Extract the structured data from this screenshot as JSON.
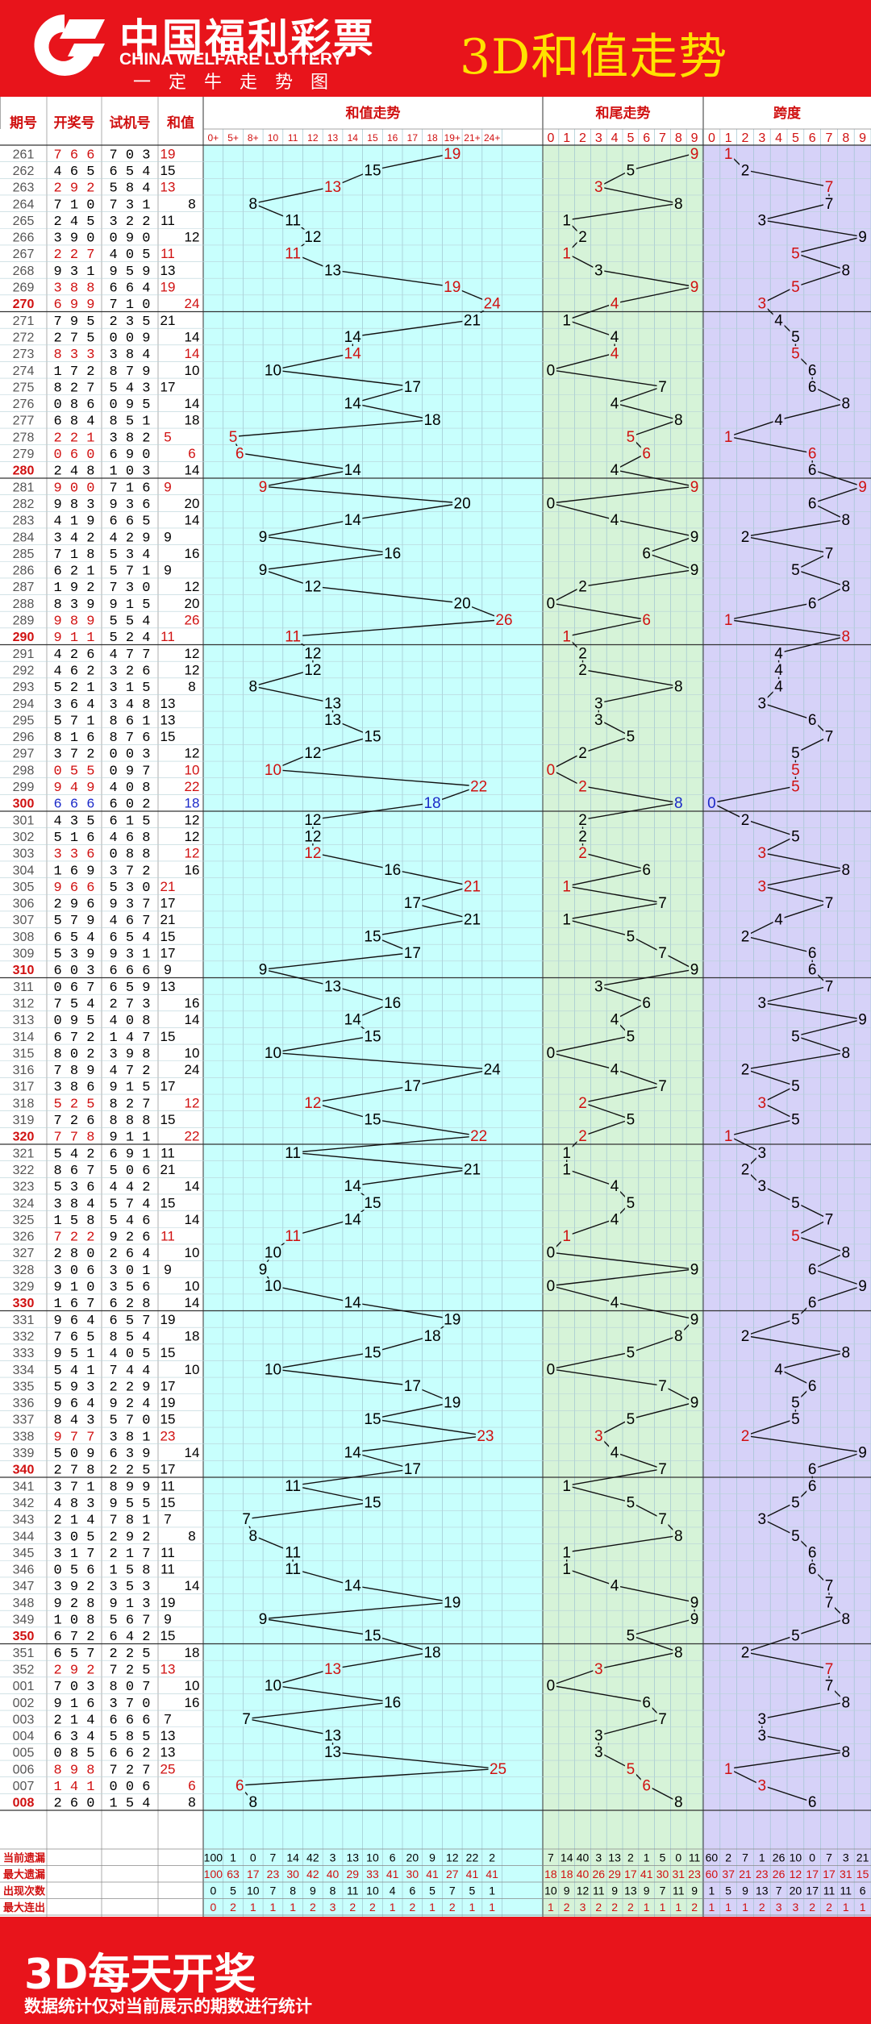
{
  "header": {
    "cn_name": "中国福利彩票",
    "en_name": "CHINA WELFARE LOTTERY",
    "slogan": "一定牛走势图",
    "title": "3D和值走势"
  },
  "footer": {
    "big": "3D每天开奖",
    "small": "数据统计仅对当前展示的期数进行统计"
  },
  "colors": {
    "red": "#e8141b",
    "hotRed": "#ee1111",
    "blue": "#1a28c8",
    "sumBg": "#c8fffd",
    "tailBg": "#d6f3d8",
    "spanBg": "#d6d2f8",
    "leftBg": "#ffffff",
    "yellow": "#ffe200"
  },
  "chart_data": {
    "type": "line",
    "title": "3D和值走势",
    "headers": {
      "issue": "期号",
      "draw": "开奖号",
      "trial": "试机号",
      "sum": "和值",
      "sumTrend": "和值走势",
      "tailTrend": "和尾走势",
      "spanTrend": "跨度"
    },
    "sumCols": [
      "0+",
      "5+",
      "8+",
      "10",
      "11",
      "12",
      "13",
      "14",
      "15",
      "16",
      "17",
      "18",
      "19+",
      "21+",
      "24+"
    ],
    "digitCols": [
      "0",
      "1",
      "2",
      "3",
      "4",
      "5",
      "6",
      "7",
      "8",
      "9"
    ],
    "rows": [
      {
        "issue": "261",
        "draw": "766",
        "trial": "703",
        "sum": 19,
        "tail": 9,
        "span": 1
      },
      {
        "issue": "262",
        "draw": "465",
        "trial": "654",
        "sum": 15,
        "tail": 5,
        "span": 2
      },
      {
        "issue": "263",
        "draw": "292",
        "trial": "584",
        "sum": 13,
        "tail": 3,
        "span": 7
      },
      {
        "issue": "264",
        "draw": "710",
        "trial": "731",
        "sum": 8,
        "tail": 8,
        "span": 7
      },
      {
        "issue": "265",
        "draw": "245",
        "trial": "322",
        "sum": 11,
        "tail": 1,
        "span": 3
      },
      {
        "issue": "266",
        "draw": "390",
        "trial": "090",
        "sum": 12,
        "tail": 2,
        "span": 9
      },
      {
        "issue": "267",
        "draw": "227",
        "trial": "405",
        "sum": 11,
        "tail": 1,
        "span": 5
      },
      {
        "issue": "268",
        "draw": "931",
        "trial": "959",
        "sum": 13,
        "tail": 3,
        "span": 8
      },
      {
        "issue": "269",
        "draw": "388",
        "trial": "664",
        "sum": 19,
        "tail": 9,
        "span": 5
      },
      {
        "issue": "270",
        "draw": "699",
        "trial": "710",
        "sum": 24,
        "tail": 4,
        "span": 3
      },
      {
        "issue": "271",
        "draw": "795",
        "trial": "235",
        "sum": 21,
        "tail": 1,
        "span": 4
      },
      {
        "issue": "272",
        "draw": "275",
        "trial": "009",
        "sum": 14,
        "tail": 4,
        "span": 5
      },
      {
        "issue": "273",
        "draw": "833",
        "trial": "384",
        "sum": 14,
        "tail": 4,
        "span": 5
      },
      {
        "issue": "274",
        "draw": "172",
        "trial": "879",
        "sum": 10,
        "tail": 0,
        "span": 6
      },
      {
        "issue": "275",
        "draw": "827",
        "trial": "543",
        "sum": 17,
        "tail": 7,
        "span": 6
      },
      {
        "issue": "276",
        "draw": "086",
        "trial": "095",
        "sum": 14,
        "tail": 4,
        "span": 8
      },
      {
        "issue": "277",
        "draw": "684",
        "trial": "851",
        "sum": 18,
        "tail": 8,
        "span": 4
      },
      {
        "issue": "278",
        "draw": "221",
        "trial": "382",
        "sum": 5,
        "tail": 5,
        "span": 1
      },
      {
        "issue": "279",
        "draw": "060",
        "trial": "690",
        "sum": 6,
        "tail": 6,
        "span": 6
      },
      {
        "issue": "280",
        "draw": "248",
        "trial": "103",
        "sum": 14,
        "tail": 4,
        "span": 6
      },
      {
        "issue": "281",
        "draw": "900",
        "trial": "716",
        "sum": 9,
        "tail": 9,
        "span": 9
      },
      {
        "issue": "282",
        "draw": "983",
        "trial": "936",
        "sum": 20,
        "tail": 0,
        "span": 6
      },
      {
        "issue": "283",
        "draw": "419",
        "trial": "665",
        "sum": 14,
        "tail": 4,
        "span": 8
      },
      {
        "issue": "284",
        "draw": "342",
        "trial": "429",
        "sum": 9,
        "tail": 9,
        "span": 2
      },
      {
        "issue": "285",
        "draw": "718",
        "trial": "534",
        "sum": 16,
        "tail": 6,
        "span": 7
      },
      {
        "issue": "286",
        "draw": "621",
        "trial": "571",
        "sum": 9,
        "tail": 9,
        "span": 5
      },
      {
        "issue": "287",
        "draw": "192",
        "trial": "730",
        "sum": 12,
        "tail": 2,
        "span": 8
      },
      {
        "issue": "288",
        "draw": "839",
        "trial": "915",
        "sum": 20,
        "tail": 0,
        "span": 6
      },
      {
        "issue": "289",
        "draw": "989",
        "trial": "554",
        "sum": 26,
        "tail": 6,
        "span": 1
      },
      {
        "issue": "290",
        "draw": "911",
        "trial": "524",
        "sum": 11,
        "tail": 1,
        "span": 8
      },
      {
        "issue": "291",
        "draw": "426",
        "trial": "477",
        "sum": 12,
        "tail": 2,
        "span": 4
      },
      {
        "issue": "292",
        "draw": "462",
        "trial": "326",
        "sum": 12,
        "tail": 2,
        "span": 4
      },
      {
        "issue": "293",
        "draw": "521",
        "trial": "315",
        "sum": 8,
        "tail": 8,
        "span": 4
      },
      {
        "issue": "294",
        "draw": "364",
        "trial": "348",
        "sum": 13,
        "tail": 3,
        "span": 3
      },
      {
        "issue": "295",
        "draw": "571",
        "trial": "861",
        "sum": 13,
        "tail": 3,
        "span": 6
      },
      {
        "issue": "296",
        "draw": "816",
        "trial": "876",
        "sum": 15,
        "tail": 5,
        "span": 7
      },
      {
        "issue": "297",
        "draw": "372",
        "trial": "003",
        "sum": 12,
        "tail": 2,
        "span": 5
      },
      {
        "issue": "298",
        "draw": "055",
        "trial": "097",
        "sum": 10,
        "tail": 0,
        "span": 5
      },
      {
        "issue": "299",
        "draw": "949",
        "trial": "408",
        "sum": 22,
        "tail": 2,
        "span": 5
      },
      {
        "issue": "300",
        "draw": "666",
        "trial": "602",
        "sum": 18,
        "tail": 8,
        "span": 0
      },
      {
        "issue": "301",
        "draw": "435",
        "trial": "615",
        "sum": 12,
        "tail": 2,
        "span": 2
      },
      {
        "issue": "302",
        "draw": "516",
        "trial": "468",
        "sum": 12,
        "tail": 2,
        "span": 5
      },
      {
        "issue": "303",
        "draw": "336",
        "trial": "088",
        "sum": 12,
        "tail": 2,
        "span": 3
      },
      {
        "issue": "304",
        "draw": "169",
        "trial": "372",
        "sum": 16,
        "tail": 6,
        "span": 8
      },
      {
        "issue": "305",
        "draw": "966",
        "trial": "530",
        "sum": 21,
        "tail": 1,
        "span": 3
      },
      {
        "issue": "306",
        "draw": "296",
        "trial": "937",
        "sum": 17,
        "tail": 7,
        "span": 7
      },
      {
        "issue": "307",
        "draw": "579",
        "trial": "467",
        "sum": 21,
        "tail": 1,
        "span": 4
      },
      {
        "issue": "308",
        "draw": "654",
        "trial": "654",
        "sum": 15,
        "tail": 5,
        "span": 2
      },
      {
        "issue": "309",
        "draw": "539",
        "trial": "931",
        "sum": 17,
        "tail": 7,
        "span": 6
      },
      {
        "issue": "310",
        "draw": "603",
        "trial": "666",
        "sum": 9,
        "tail": 9,
        "span": 6
      },
      {
        "issue": "311",
        "draw": "067",
        "trial": "659",
        "sum": 13,
        "tail": 3,
        "span": 7
      },
      {
        "issue": "312",
        "draw": "754",
        "trial": "273",
        "sum": 16,
        "tail": 6,
        "span": 3
      },
      {
        "issue": "313",
        "draw": "095",
        "trial": "408",
        "sum": 14,
        "tail": 4,
        "span": 9
      },
      {
        "issue": "314",
        "draw": "672",
        "trial": "147",
        "sum": 15,
        "tail": 5,
        "span": 5
      },
      {
        "issue": "315",
        "draw": "802",
        "trial": "398",
        "sum": 10,
        "tail": 0,
        "span": 8
      },
      {
        "issue": "316",
        "draw": "789",
        "trial": "472",
        "sum": 24,
        "tail": 4,
        "span": 2
      },
      {
        "issue": "317",
        "draw": "386",
        "trial": "915",
        "sum": 17,
        "tail": 7,
        "span": 5
      },
      {
        "issue": "318",
        "draw": "525",
        "trial": "827",
        "sum": 12,
        "tail": 2,
        "span": 3
      },
      {
        "issue": "319",
        "draw": "726",
        "trial": "888",
        "sum": 15,
        "tail": 5,
        "span": 5
      },
      {
        "issue": "320",
        "draw": "778",
        "trial": "911",
        "sum": 22,
        "tail": 2,
        "span": 1
      },
      {
        "issue": "321",
        "draw": "542",
        "trial": "691",
        "sum": 11,
        "tail": 1,
        "span": 3
      },
      {
        "issue": "322",
        "draw": "867",
        "trial": "506",
        "sum": 21,
        "tail": 1,
        "span": 2
      },
      {
        "issue": "323",
        "draw": "536",
        "trial": "442",
        "sum": 14,
        "tail": 4,
        "span": 3
      },
      {
        "issue": "324",
        "draw": "384",
        "trial": "574",
        "sum": 15,
        "tail": 5,
        "span": 5
      },
      {
        "issue": "325",
        "draw": "158",
        "trial": "546",
        "sum": 14,
        "tail": 4,
        "span": 7
      },
      {
        "issue": "326",
        "draw": "722",
        "trial": "926",
        "sum": 11,
        "tail": 1,
        "span": 5
      },
      {
        "issue": "327",
        "draw": "280",
        "trial": "264",
        "sum": 10,
        "tail": 0,
        "span": 8
      },
      {
        "issue": "328",
        "draw": "306",
        "trial": "301",
        "sum": 9,
        "tail": 9,
        "span": 6
      },
      {
        "issue": "329",
        "draw": "910",
        "trial": "356",
        "sum": 10,
        "tail": 0,
        "span": 9
      },
      {
        "issue": "330",
        "draw": "167",
        "trial": "628",
        "sum": 14,
        "tail": 4,
        "span": 6
      },
      {
        "issue": "331",
        "draw": "964",
        "trial": "657",
        "sum": 19,
        "tail": 9,
        "span": 5
      },
      {
        "issue": "332",
        "draw": "765",
        "trial": "854",
        "sum": 18,
        "tail": 8,
        "span": 2
      },
      {
        "issue": "333",
        "draw": "951",
        "trial": "405",
        "sum": 15,
        "tail": 5,
        "span": 8
      },
      {
        "issue": "334",
        "draw": "541",
        "trial": "744",
        "sum": 10,
        "tail": 0,
        "span": 4
      },
      {
        "issue": "335",
        "draw": "593",
        "trial": "229",
        "sum": 17,
        "tail": 7,
        "span": 6
      },
      {
        "issue": "336",
        "draw": "964",
        "trial": "924",
        "sum": 19,
        "tail": 9,
        "span": 5
      },
      {
        "issue": "337",
        "draw": "843",
        "trial": "570",
        "sum": 15,
        "tail": 5,
        "span": 5
      },
      {
        "issue": "338",
        "draw": "977",
        "trial": "381",
        "sum": 23,
        "tail": 3,
        "span": 2
      },
      {
        "issue": "339",
        "draw": "509",
        "trial": "639",
        "sum": 14,
        "tail": 4,
        "span": 9
      },
      {
        "issue": "340",
        "draw": "278",
        "trial": "225",
        "sum": 17,
        "tail": 7,
        "span": 6
      },
      {
        "issue": "341",
        "draw": "371",
        "trial": "899",
        "sum": 11,
        "tail": 1,
        "span": 6
      },
      {
        "issue": "342",
        "draw": "483",
        "trial": "955",
        "sum": 15,
        "tail": 5,
        "span": 5
      },
      {
        "issue": "343",
        "draw": "214",
        "trial": "781",
        "sum": 7,
        "tail": 7,
        "span": 3
      },
      {
        "issue": "344",
        "draw": "305",
        "trial": "292",
        "sum": 8,
        "tail": 8,
        "span": 5
      },
      {
        "issue": "345",
        "draw": "317",
        "trial": "217",
        "sum": 11,
        "tail": 1,
        "span": 6
      },
      {
        "issue": "346",
        "draw": "056",
        "trial": "158",
        "sum": 11,
        "tail": 1,
        "span": 6
      },
      {
        "issue": "347",
        "draw": "392",
        "trial": "353",
        "sum": 14,
        "tail": 4,
        "span": 7
      },
      {
        "issue": "348",
        "draw": "928",
        "trial": "913",
        "sum": 19,
        "tail": 9,
        "span": 7
      },
      {
        "issue": "349",
        "draw": "108",
        "trial": "567",
        "sum": 9,
        "tail": 9,
        "span": 8
      },
      {
        "issue": "350",
        "draw": "672",
        "trial": "642",
        "sum": 15,
        "tail": 5,
        "span": 5
      },
      {
        "issue": "351",
        "draw": "657",
        "trial": "225",
        "sum": 18,
        "tail": 8,
        "span": 2
      },
      {
        "issue": "352",
        "draw": "292",
        "trial": "725",
        "sum": 13,
        "tail": 3,
        "span": 7
      },
      {
        "issue": "001",
        "draw": "703",
        "trial": "807",
        "sum": 10,
        "tail": 0,
        "span": 7
      },
      {
        "issue": "002",
        "draw": "916",
        "trial": "370",
        "sum": 16,
        "tail": 6,
        "span": 8
      },
      {
        "issue": "003",
        "draw": "214",
        "trial": "666",
        "sum": 7,
        "tail": 7,
        "span": 3
      },
      {
        "issue": "004",
        "draw": "634",
        "trial": "585",
        "sum": 13,
        "tail": 3,
        "span": 3
      },
      {
        "issue": "005",
        "draw": "085",
        "trial": "662",
        "sum": 13,
        "tail": 3,
        "span": 8
      },
      {
        "issue": "006",
        "draw": "898",
        "trial": "727",
        "sum": 25,
        "tail": 5,
        "span": 1
      },
      {
        "issue": "007",
        "draw": "141",
        "trial": "006",
        "sum": 6,
        "tail": 6,
        "span": 3
      },
      {
        "issue": "008",
        "draw": "260",
        "trial": "154",
        "sum": 8,
        "tail": 8,
        "span": 6
      }
    ],
    "statLabels": [
      "当前遗漏",
      "最大遗漏",
      "出现次数",
      "最大连出"
    ],
    "stats": {
      "sum": [
        [
          "100",
          "1",
          "0",
          "7",
          "14",
          "42",
          "3",
          "13",
          "10",
          "6",
          "20",
          "9",
          "12",
          "22",
          "2"
        ],
        [
          "100",
          "63",
          "17",
          "23",
          "30",
          "42",
          "40",
          "29",
          "33",
          "41",
          "30",
          "41",
          "27",
          "41",
          "41"
        ],
        [
          "0",
          "5",
          "10",
          "7",
          "8",
          "9",
          "8",
          "11",
          "10",
          "4",
          "6",
          "5",
          "7",
          "5",
          "1"
        ],
        [
          "0",
          "2",
          "1",
          "1",
          "1",
          "2",
          "3",
          "2",
          "2",
          "1",
          "2",
          "1",
          "2",
          "1",
          "1"
        ]
      ],
      "tail": [
        [
          "7",
          "14",
          "40",
          "3",
          "13",
          "2",
          "1",
          "5",
          "0",
          "11"
        ],
        [
          "18",
          "18",
          "40",
          "26",
          "29",
          "17",
          "41",
          "30",
          "31",
          "23"
        ],
        [
          "10",
          "9",
          "12",
          "11",
          "9",
          "13",
          "9",
          "7",
          "11",
          "9"
        ],
        [
          "1",
          "2",
          "3",
          "2",
          "2",
          "2",
          "1",
          "1",
          "1",
          "2"
        ]
      ],
      "span": [
        [
          "60",
          "2",
          "7",
          "1",
          "26",
          "10",
          "0",
          "7",
          "3",
          "21"
        ],
        [
          "60",
          "37",
          "21",
          "23",
          "26",
          "12",
          "17",
          "17",
          "31",
          "15"
        ],
        [
          "1",
          "5",
          "9",
          "13",
          "7",
          "20",
          "17",
          "11",
          "11",
          "6"
        ],
        [
          "1",
          "1",
          "1",
          "2",
          "3",
          "3",
          "2",
          "2",
          "1",
          "1"
        ]
      ]
    }
  }
}
